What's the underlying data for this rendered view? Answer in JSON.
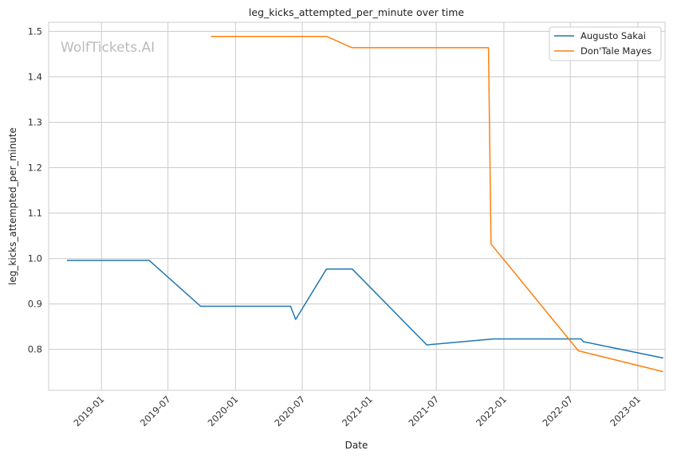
{
  "chart_data": {
    "type": "line",
    "title": "leg_kicks_attempted_per_minute over time",
    "xlabel": "Date",
    "ylabel": "leg_kicks_attempted_per_minute",
    "watermark": "WolfTickets.AI",
    "grid": true,
    "legend_position": "top-right",
    "x_range": [
      "2018-08-10",
      "2023-03-16"
    ],
    "ylim": [
      0.71,
      1.52
    ],
    "x_ticks": [
      "2019-01",
      "2019-07",
      "2020-01",
      "2020-07",
      "2021-01",
      "2021-07",
      "2022-01",
      "2022-07",
      "2023-01"
    ],
    "y_ticks": [
      "0.8",
      "0.9",
      "1.0",
      "1.1",
      "1.2",
      "1.3",
      "1.4",
      "1.5"
    ],
    "series": [
      {
        "name": "Augusto Sakai",
        "color": "#1f77b4",
        "points": [
          [
            "2018-09-29",
            0.996
          ],
          [
            "2019-05-11",
            0.996
          ],
          [
            "2019-09-28",
            0.895
          ],
          [
            "2020-05-30",
            0.895
          ],
          [
            "2020-06-13",
            0.866
          ],
          [
            "2020-09-05",
            0.977
          ],
          [
            "2020-11-14",
            0.977
          ],
          [
            "2021-06-05",
            0.81
          ],
          [
            "2021-12-04",
            0.823
          ],
          [
            "2022-07-30",
            0.823
          ],
          [
            "2022-08-06",
            0.817
          ],
          [
            "2023-03-11",
            0.781
          ]
        ]
      },
      {
        "name": "Don'Tale Mayes",
        "color": "#ff7f0e",
        "points": [
          [
            "2019-10-26",
            1.489
          ],
          [
            "2020-09-05",
            1.489
          ],
          [
            "2020-11-14",
            1.464
          ],
          [
            "2021-11-20",
            1.464
          ],
          [
            "2021-11-27",
            1.032
          ],
          [
            "2022-07-23",
            0.797
          ],
          [
            "2023-03-11",
            0.751
          ]
        ]
      }
    ]
  }
}
